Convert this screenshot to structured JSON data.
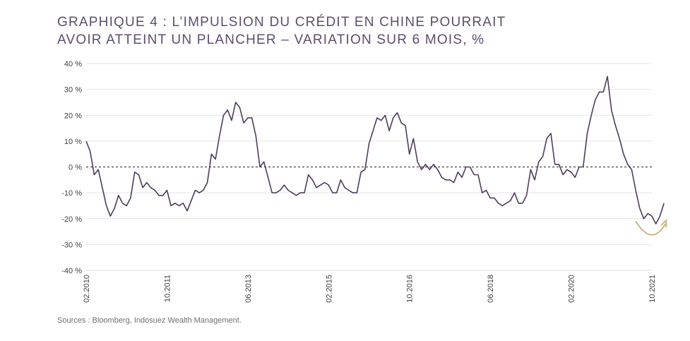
{
  "title_line1": "GRAPHIQUE 4 : L’IMPULSION DU CRÉDIT EN CHINE POURRAIT",
  "title_line2": "AVOIR ATTEINT UN PLANCHER – VARIATION SUR 6 MOIS, %",
  "source": "Sources : Bloomberg, Indosuez Wealth Management.",
  "colors": {
    "line": "#4f3d5c",
    "arrow": "#c4a872",
    "grid": "#e2e2e2",
    "zero": "#222222"
  },
  "chart_data": {
    "type": "line",
    "title": "GRAPHIQUE 4 : L’IMPULSION DU CRÉDIT EN CHINE POURRAIT AVOIR ATTEINT UN PLANCHER – VARIATION SUR 6 MOIS, %",
    "xlabel": "",
    "ylabel": "",
    "ylim": [
      -40,
      40
    ],
    "y_ticks": [
      40,
      30,
      20,
      10,
      0,
      -10,
      -20,
      -30,
      -40
    ],
    "y_tick_labels": [
      "40 %",
      "30 %",
      "20 %",
      "10 %",
      "0 %",
      "-10 %",
      "-20 %",
      "-30 %",
      "-40 %"
    ],
    "x_tick_labels": [
      "02.2010",
      "10.2011",
      "06.2013",
      "02.2015",
      "10.2016",
      "06.2018",
      "02.2020",
      "10.2021"
    ],
    "x_tick_dates": [
      "2010-02",
      "2011-10",
      "2013-06",
      "2015-02",
      "2016-10",
      "2018-06",
      "2020-02",
      "2021-10"
    ],
    "grid": true,
    "zero_line": "dashed",
    "annotation": "curved arrow turning upward near the end of the series",
    "series": [
      {
        "points": [
          [
            "2010-02",
            10
          ],
          [
            "2010-03",
            6
          ],
          [
            "2010-04",
            -3
          ],
          [
            "2010-05",
            -1
          ],
          [
            "2010-06",
            -8
          ],
          [
            "2010-07",
            -15
          ],
          [
            "2010-08",
            -19
          ],
          [
            "2010-09",
            -16
          ],
          [
            "2010-10",
            -11
          ],
          [
            "2010-11",
            -14
          ],
          [
            "2010-12",
            -15
          ],
          [
            "2011-01",
            -12
          ],
          [
            "2011-02",
            -2
          ],
          [
            "2011-03",
            -3
          ],
          [
            "2011-04",
            -8
          ],
          [
            "2011-05",
            -6
          ],
          [
            "2011-06",
            -8
          ],
          [
            "2011-07",
            -9
          ],
          [
            "2011-08",
            -11
          ],
          [
            "2011-09",
            -11
          ],
          [
            "2011-10",
            -9
          ],
          [
            "2011-11",
            -15
          ],
          [
            "2011-12",
            -14
          ],
          [
            "2012-01",
            -15
          ],
          [
            "2012-02",
            -14
          ],
          [
            "2012-03",
            -17
          ],
          [
            "2012-04",
            -13
          ],
          [
            "2012-05",
            -9
          ],
          [
            "2012-06",
            -10
          ],
          [
            "2012-07",
            -9
          ],
          [
            "2012-08",
            -6
          ],
          [
            "2012-09",
            5
          ],
          [
            "2012-10",
            3
          ],
          [
            "2012-11",
            12
          ],
          [
            "2012-12",
            20
          ],
          [
            "2013-01",
            22
          ],
          [
            "2013-02",
            18
          ],
          [
            "2013-03",
            25
          ],
          [
            "2013-04",
            23
          ],
          [
            "2013-05",
            17
          ],
          [
            "2013-06",
            19
          ],
          [
            "2013-07",
            19
          ],
          [
            "2013-08",
            12
          ],
          [
            "2013-09",
            0
          ],
          [
            "2013-10",
            2
          ],
          [
            "2013-11",
            -4
          ],
          [
            "2013-12",
            -10
          ],
          [
            "2014-01",
            -10
          ],
          [
            "2014-02",
            -9
          ],
          [
            "2014-03",
            -7
          ],
          [
            "2014-04",
            -9
          ],
          [
            "2014-05",
            -10
          ],
          [
            "2014-06",
            -11
          ],
          [
            "2014-07",
            -10
          ],
          [
            "2014-08",
            -10
          ],
          [
            "2014-09",
            -3
          ],
          [
            "2014-10",
            -5
          ],
          [
            "2014-11",
            -8
          ],
          [
            "2014-12",
            -7
          ],
          [
            "2015-01",
            -6
          ],
          [
            "2015-02",
            -7
          ],
          [
            "2015-03",
            -10
          ],
          [
            "2015-04",
            -10
          ],
          [
            "2015-05",
            -5
          ],
          [
            "2015-06",
            -8
          ],
          [
            "2015-07",
            -9
          ],
          [
            "2015-08",
            -10
          ],
          [
            "2015-09",
            -10
          ],
          [
            "2015-10",
            -2
          ],
          [
            "2015-11",
            -1
          ],
          [
            "2015-12",
            9
          ],
          [
            "2016-01",
            14
          ],
          [
            "2016-02",
            19
          ],
          [
            "2016-03",
            18
          ],
          [
            "2016-04",
            20
          ],
          [
            "2016-05",
            14
          ],
          [
            "2016-06",
            19
          ],
          [
            "2016-07",
            21
          ],
          [
            "2016-08",
            17
          ],
          [
            "2016-09",
            16
          ],
          [
            "2016-10",
            5
          ],
          [
            "2016-11",
            11
          ],
          [
            "2016-12",
            2
          ],
          [
            "2017-01",
            -1
          ],
          [
            "2017-02",
            1
          ],
          [
            "2017-03",
            -1
          ],
          [
            "2017-04",
            1
          ],
          [
            "2017-05",
            -1
          ],
          [
            "2017-06",
            -4
          ],
          [
            "2017-07",
            -5
          ],
          [
            "2017-08",
            -5
          ],
          [
            "2017-09",
            -6
          ],
          [
            "2017-10",
            -2
          ],
          [
            "2017-11",
            -4
          ],
          [
            "2017-12",
            0
          ],
          [
            "2018-01",
            0
          ],
          [
            "2018-02",
            -3
          ],
          [
            "2018-03",
            -3
          ],
          [
            "2018-04",
            -10
          ],
          [
            "2018-05",
            -9
          ],
          [
            "2018-06",
            -12
          ],
          [
            "2018-07",
            -12
          ],
          [
            "2018-08",
            -14
          ],
          [
            "2018-09",
            -15
          ],
          [
            "2018-10",
            -14
          ],
          [
            "2018-11",
            -13
          ],
          [
            "2018-12",
            -10
          ],
          [
            "2019-01",
            -14
          ],
          [
            "2019-02",
            -14
          ],
          [
            "2019-03",
            -11
          ],
          [
            "2019-04",
            -1
          ],
          [
            "2019-05",
            -5
          ],
          [
            "2019-06",
            2
          ],
          [
            "2019-07",
            4
          ],
          [
            "2019-08",
            11
          ],
          [
            "2019-09",
            13
          ],
          [
            "2019-10",
            1
          ],
          [
            "2019-11",
            1
          ],
          [
            "2019-12",
            -3
          ],
          [
            "2020-01",
            -1
          ],
          [
            "2020-02",
            -2
          ],
          [
            "2020-03",
            -4
          ],
          [
            "2020-04",
            0
          ],
          [
            "2020-05",
            0
          ],
          [
            "2020-06",
            13
          ],
          [
            "2020-07",
            20
          ],
          [
            "2020-08",
            26
          ],
          [
            "2020-09",
            29
          ],
          [
            "2020-10",
            29
          ],
          [
            "2020-11",
            35
          ],
          [
            "2020-12",
            22
          ],
          [
            "2021-01",
            16
          ],
          [
            "2021-02",
            11
          ],
          [
            "2021-03",
            5
          ],
          [
            "2021-04",
            1
          ],
          [
            "2021-05",
            -1
          ],
          [
            "2021-06",
            -9
          ],
          [
            "2021-07",
            -16
          ],
          [
            "2021-08",
            -20
          ],
          [
            "2021-09",
            -18
          ],
          [
            "2021-10",
            -19
          ],
          [
            "2021-11",
            -22
          ],
          [
            "2021-12",
            -19
          ],
          [
            "2022-01",
            -14
          ]
        ]
      }
    ]
  }
}
